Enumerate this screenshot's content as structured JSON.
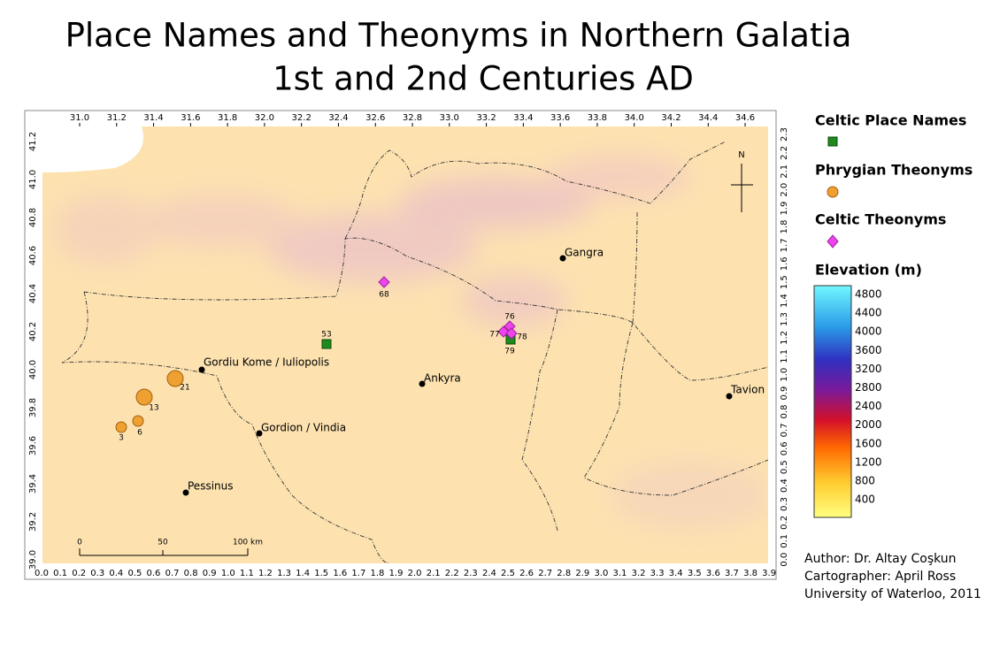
{
  "title": {
    "line1": "Place Names and Theonyms in Northern Galatia",
    "line2": "1st and 2nd Centuries AD"
  },
  "axes": {
    "top": [
      "31.0",
      "31.2",
      "31.4",
      "31.6",
      "31.8",
      "32.0",
      "32.2",
      "32.4",
      "32.6",
      "32.8",
      "33.0",
      "33.2",
      "33.4",
      "33.6",
      "33.8",
      "34.0",
      "34.2",
      "34.4",
      "34.6"
    ],
    "left": [
      "41.2",
      "41.0",
      "40.8",
      "40.6",
      "40.4",
      "40.2",
      "40.0",
      "39.8",
      "39.6",
      "39.4",
      "39.2",
      "39.0"
    ],
    "bottom": [
      "0.0",
      "0.1",
      "0.2",
      "0.3",
      "0.4",
      "0.5",
      "0.6",
      "0.7",
      "0.8",
      "0.9",
      "1.0",
      "1.1",
      "1.2",
      "1.3",
      "1.4",
      "1.5",
      "1.6",
      "1.7",
      "1.8",
      "1.9",
      "2.0",
      "2.1",
      "2.2",
      "2.3",
      "2.4",
      "2.5",
      "2.6",
      "2.7",
      "2.8",
      "2.9",
      "3.0",
      "3.1",
      "3.2",
      "3.3",
      "3.4",
      "3.5",
      "3.6",
      "3.7",
      "3.8",
      "3.9"
    ],
    "right": [
      "2.3",
      "2.2",
      "2.1",
      "2.0",
      "1.9",
      "1.8",
      "1.7",
      "1.6",
      "1.5",
      "1.4",
      "1.3",
      "1.2",
      "1.1",
      "1.0",
      "0.9",
      "0.8",
      "0.7",
      "0.6",
      "0.5",
      "0.4",
      "0.3",
      "0.2",
      "0.1",
      "0.0"
    ]
  },
  "cities": [
    "Gordiu Kome / Iuliopolis",
    "Ankyra",
    "Gordion / Vindia",
    "Pessinus",
    "Gangra",
    "Tavion"
  ],
  "celtic_place_names": [
    "53",
    "79"
  ],
  "phrygian_theonyms": [
    "21",
    "13",
    "6",
    "3"
  ],
  "celtic_theonyms": [
    "68",
    "76",
    "77",
    "78"
  ],
  "north": "N",
  "scale_bar": [
    "0",
    "50",
    "100 km"
  ],
  "legend": {
    "celtic_place_names": "Celtic Place Names",
    "phrygian_theonyms": "Phrygian Theonyms",
    "celtic_theonyms": "Celtic Theonyms",
    "elevation": "Elevation (m)",
    "elevation_labels": [
      "4800",
      "4400",
      "4000",
      "3600",
      "3200",
      "2800",
      "2400",
      "2000",
      "1600",
      "1200",
      "800",
      "400"
    ]
  },
  "credits": [
    "Author: Dr. Altay Coşkun",
    "Cartographer: April Ross",
    "University of Waterloo, 2011"
  ]
}
